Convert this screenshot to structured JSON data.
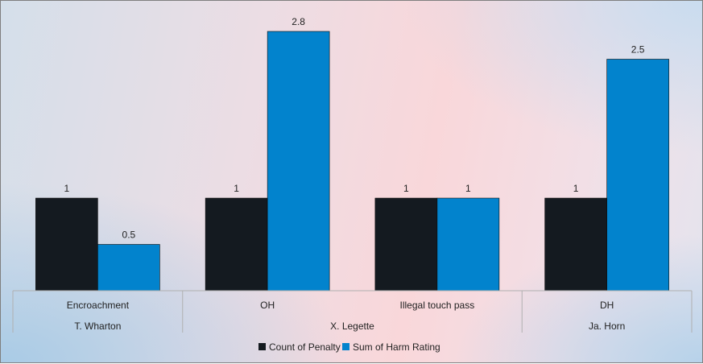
{
  "chart_data": {
    "type": "bar",
    "groups": [
      {
        "name": "T. Wharton",
        "categories": [
          "Encroachment"
        ]
      },
      {
        "name": "X. Legette",
        "categories": [
          "OH",
          "Illegal touch pass"
        ]
      },
      {
        "name": "Ja. Horn",
        "categories": [
          "DH"
        ]
      }
    ],
    "categories": [
      "Encroachment",
      "OH",
      "Illegal touch pass",
      "DH"
    ],
    "series": [
      {
        "name": "Count of Penalty",
        "values": [
          1,
          1,
          1,
          1
        ],
        "labels": [
          "1",
          "1",
          "1",
          "1"
        ]
      },
      {
        "name": "Sum of Harm Rating",
        "values": [
          0.5,
          2.8,
          1,
          2.5
        ],
        "labels": [
          "0.5",
          "2.8",
          "1",
          "2.5"
        ]
      }
    ],
    "ylim": [
      0,
      2.8
    ],
    "grid": false,
    "legend": "bottom",
    "colors": {
      "Count of Penalty": "#141a20",
      "Sum of Harm Rating": "#0283cd",
      "axis": "#b0b0b0"
    }
  }
}
